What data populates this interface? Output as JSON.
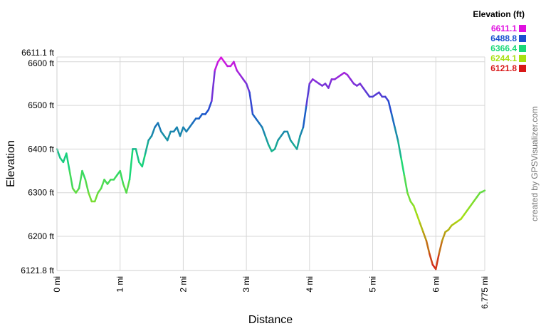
{
  "chart_data": {
    "type": "line",
    "title": "",
    "xlabel": "Distance",
    "ylabel": "Elevation",
    "x_unit": "mi",
    "y_unit": "ft",
    "xlim": [
      0,
      6.775
    ],
    "ylim": [
      6121.8,
      6611.1
    ],
    "grid": true,
    "x_ticks": [
      {
        "value": 0,
        "label": "0 mi"
      },
      {
        "value": 1,
        "label": "1 mi"
      },
      {
        "value": 2,
        "label": "2 mi"
      },
      {
        "value": 3,
        "label": "3 mi"
      },
      {
        "value": 4,
        "label": "4 mi"
      },
      {
        "value": 5,
        "label": "5 mi"
      },
      {
        "value": 6,
        "label": "6 mi"
      },
      {
        "value": 6.775,
        "label": "6.775 mi"
      }
    ],
    "y_ticks": [
      {
        "value": 6121.8,
        "label": "6121.8 ft"
      },
      {
        "value": 6200,
        "label": "6200 ft"
      },
      {
        "value": 6300,
        "label": "6300 ft"
      },
      {
        "value": 6400,
        "label": "6400 ft"
      },
      {
        "value": 6500,
        "label": "6500 ft"
      },
      {
        "value": 6600,
        "label": "6600 ft"
      },
      {
        "value": 6611.1,
        "label": "6611.1 ft"
      }
    ],
    "legend": {
      "title": "Elevation (ft)",
      "placement": "top-right",
      "entries": [
        {
          "label": "6611.1",
          "color": "#e010e0"
        },
        {
          "label": "6488.8",
          "color": "#1a4fd0"
        },
        {
          "label": "6366.4",
          "color": "#18d878"
        },
        {
          "label": "6244.1",
          "color": "#a8e010"
        },
        {
          "label": "6121.8",
          "color": "#d81818"
        }
      ]
    },
    "color_scale": [
      "#d81818",
      "#a8e010",
      "#18d878",
      "#1a4fd0",
      "#e010e0"
    ],
    "series": [
      {
        "x": [
          0,
          0.05,
          0.1,
          0.15,
          0.2,
          0.25,
          0.3,
          0.35,
          0.4,
          0.45,
          0.5,
          0.55,
          0.6,
          0.65,
          0.7,
          0.75,
          0.8,
          0.85,
          0.9,
          0.95,
          1.0,
          1.05,
          1.1,
          1.15,
          1.2,
          1.25,
          1.3,
          1.35,
          1.4,
          1.45,
          1.5,
          1.55,
          1.6,
          1.65,
          1.7,
          1.75,
          1.8,
          1.85,
          1.9,
          1.95,
          2.0,
          2.05,
          2.1,
          2.15,
          2.2,
          2.25,
          2.3,
          2.35,
          2.4,
          2.45,
          2.5,
          2.55,
          2.6,
          2.65,
          2.7,
          2.75,
          2.8,
          2.85,
          2.9,
          2.95,
          3.0,
          3.05,
          3.1,
          3.15,
          3.2,
          3.25,
          3.3,
          3.35,
          3.4,
          3.45,
          3.5,
          3.55,
          3.6,
          3.65,
          3.7,
          3.75,
          3.8,
          3.85,
          3.9,
          3.95,
          4.0,
          4.05,
          4.1,
          4.15,
          4.2,
          4.25,
          4.3,
          4.35,
          4.4,
          4.45,
          4.5,
          4.55,
          4.6,
          4.65,
          4.7,
          4.75,
          4.8,
          4.85,
          4.9,
          4.95,
          5.0,
          5.05,
          5.1,
          5.15,
          5.2,
          5.25,
          5.3,
          5.35,
          5.4,
          5.45,
          5.5,
          5.55,
          5.6,
          5.65,
          5.7,
          5.75,
          5.8,
          5.85,
          5.9,
          5.95,
          6.0,
          6.05,
          6.1,
          6.15,
          6.2,
          6.25,
          6.3,
          6.35,
          6.4,
          6.45,
          6.5,
          6.55,
          6.6,
          6.65,
          6.7,
          6.775
        ],
        "y": [
          6400,
          6380,
          6370,
          6390,
          6350,
          6310,
          6300,
          6310,
          6350,
          6330,
          6300,
          6280,
          6280,
          6300,
          6310,
          6330,
          6320,
          6330,
          6330,
          6340,
          6350,
          6320,
          6300,
          6330,
          6400,
          6400,
          6370,
          6360,
          6390,
          6420,
          6430,
          6450,
          6460,
          6440,
          6430,
          6420,
          6440,
          6440,
          6450,
          6430,
          6450,
          6440,
          6450,
          6460,
          6470,
          6470,
          6480,
          6480,
          6490,
          6510,
          6580,
          6600,
          6610,
          6600,
          6590,
          6590,
          6600,
          6580,
          6570,
          6560,
          6550,
          6530,
          6480,
          6470,
          6460,
          6450,
          6430,
          6410,
          6395,
          6400,
          6420,
          6430,
          6440,
          6440,
          6420,
          6410,
          6400,
          6430,
          6450,
          6500,
          6550,
          6560,
          6555,
          6550,
          6545,
          6550,
          6540,
          6560,
          6560,
          6565,
          6570,
          6575,
          6570,
          6560,
          6550,
          6545,
          6550,
          6540,
          6530,
          6520,
          6520,
          6525,
          6530,
          6520,
          6520,
          6510,
          6480,
          6450,
          6420,
          6380,
          6340,
          6300,
          6280,
          6270,
          6250,
          6230,
          6210,
          6190,
          6160,
          6135,
          6125,
          6160,
          6190,
          6210,
          6215,
          6225,
          6230,
          6235,
          6240,
          6250,
          6260,
          6270,
          6280,
          6290,
          6300,
          6305
        ]
      }
    ],
    "watermark_text": "created by GPSVisualizer.com"
  }
}
